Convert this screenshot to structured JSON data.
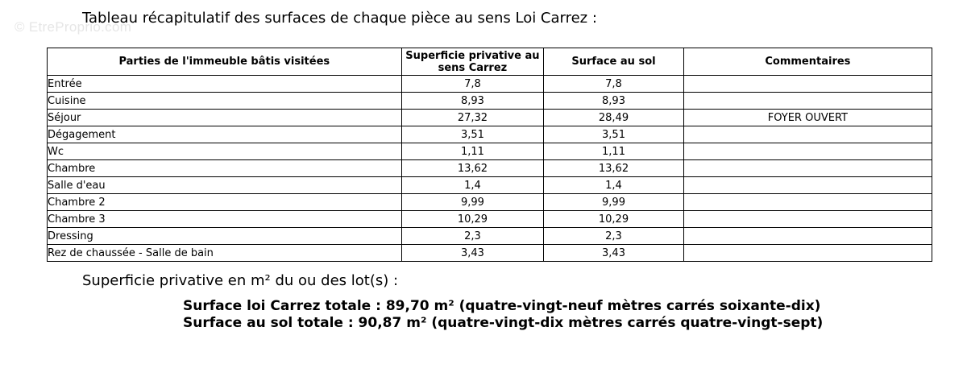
{
  "watermark": "© EtreProprio.com",
  "heading": "Tableau récapitulatif des surfaces de chaque pièce au sens Loi Carrez :",
  "table": {
    "headers": {
      "piece": "Parties de l'immeuble bâtis visitées",
      "carrez": "Superficie privative au sens Carrez",
      "sol": "Surface au sol",
      "comment": "Commentaires"
    },
    "rows": [
      {
        "piece": "Entrée",
        "carrez": "7,8",
        "sol": "7,8",
        "comment": ""
      },
      {
        "piece": "Cuisine",
        "carrez": "8,93",
        "sol": "8,93",
        "comment": ""
      },
      {
        "piece": "Séjour",
        "carrez": "27,32",
        "sol": "28,49",
        "comment": "FOYER OUVERT"
      },
      {
        "piece": "Dégagement",
        "carrez": "3,51",
        "sol": "3,51",
        "comment": ""
      },
      {
        "piece": "Wc",
        "carrez": "1,11",
        "sol": "1,11",
        "comment": ""
      },
      {
        "piece": "Chambre",
        "carrez": "13,62",
        "sol": "13,62",
        "comment": ""
      },
      {
        "piece": "Salle d'eau",
        "carrez": "1,4",
        "sol": "1,4",
        "comment": ""
      },
      {
        "piece": "Chambre 2",
        "carrez": "9,99",
        "sol": "9,99",
        "comment": ""
      },
      {
        "piece": "Chambre 3",
        "carrez": "10,29",
        "sol": "10,29",
        "comment": ""
      },
      {
        "piece": "Dressing",
        "carrez": "2,3",
        "sol": "2,3",
        "comment": ""
      },
      {
        "piece": "Rez de chaussée - Salle de bain",
        "carrez": "3,43",
        "sol": "3,43",
        "comment": ""
      }
    ]
  },
  "subheading": "Superficie privative en m² du ou des lot(s) :",
  "totals": {
    "carrez": "Surface loi Carrez totale : 89,70 m² (quatre-vingt-neuf mètres carrés soixante-dix)",
    "sol": "Surface au sol totale : 90,87 m² (quatre-vingt-dix mètres carrés quatre-vingt-sept)"
  }
}
